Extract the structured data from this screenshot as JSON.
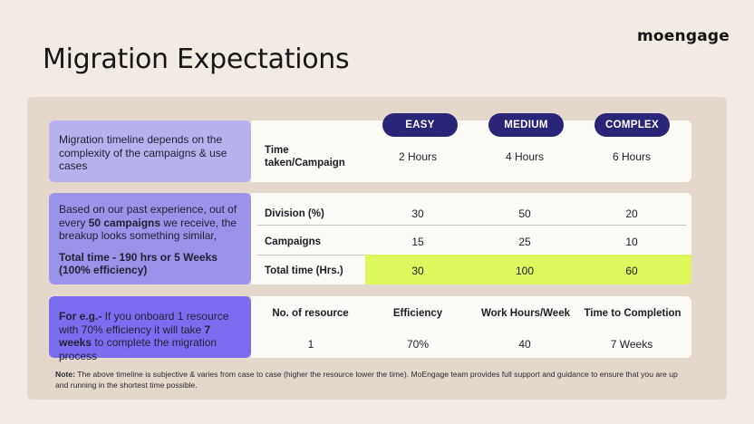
{
  "brand": {
    "logo": "moengage"
  },
  "page": {
    "title": "Migration Expectations"
  },
  "section1": {
    "description": "Migration timeline depends on the complexity of the campaigns & use cases",
    "columns": [
      "EASY",
      "MEDIUM",
      "COMPLEX"
    ],
    "row_label": "Time taken/Campaign",
    "values": [
      "2 Hours",
      "4 Hours",
      "6 Hours"
    ]
  },
  "section2": {
    "desc_part1": "Based on our past experience, out of every ",
    "desc_bold": "50 campaigns",
    "desc_part2": " we receive, the breakup looks something similar,",
    "total": "Total time - 190 hrs or 5 Weeks (100% efficiency)",
    "rows": [
      {
        "label": "Division (%)",
        "values": [
          "30",
          "50",
          "20"
        ]
      },
      {
        "label": "Campaigns",
        "values": [
          "15",
          "25",
          "10"
        ]
      },
      {
        "label": "Total time (Hrs.)",
        "values": [
          "30",
          "100",
          "60"
        ]
      }
    ],
    "highlight_color": "#ddf85c"
  },
  "section3": {
    "desc_bold": "For e.g.-",
    "desc_part1": " If you onboard 1 resource with 70% efficiency  it will take ",
    "desc_bold2": "7 weeks",
    "desc_part2": " to complete the migration process",
    "headers": [
      "No. of resource",
      "Efficiency",
      "Work Hours/Week",
      "Time to Completion"
    ],
    "values": [
      "1",
      "70%",
      "40",
      "7 Weeks"
    ]
  },
  "note": {
    "label": "Note:",
    "text": " The above timeline is subjective & varies from case to case (higher the resource lower the time). MoEngage team provides full support and guidance to ensure that you are up and running in the shortest time possible."
  },
  "colors": {
    "background": "#f1ebe4",
    "panel": "#e4d8cd",
    "pill": "#2b2577",
    "left_box_1": "#b7b2ef",
    "left_box_2": "#9b93ea",
    "left_box_3": "#7c6df0"
  }
}
